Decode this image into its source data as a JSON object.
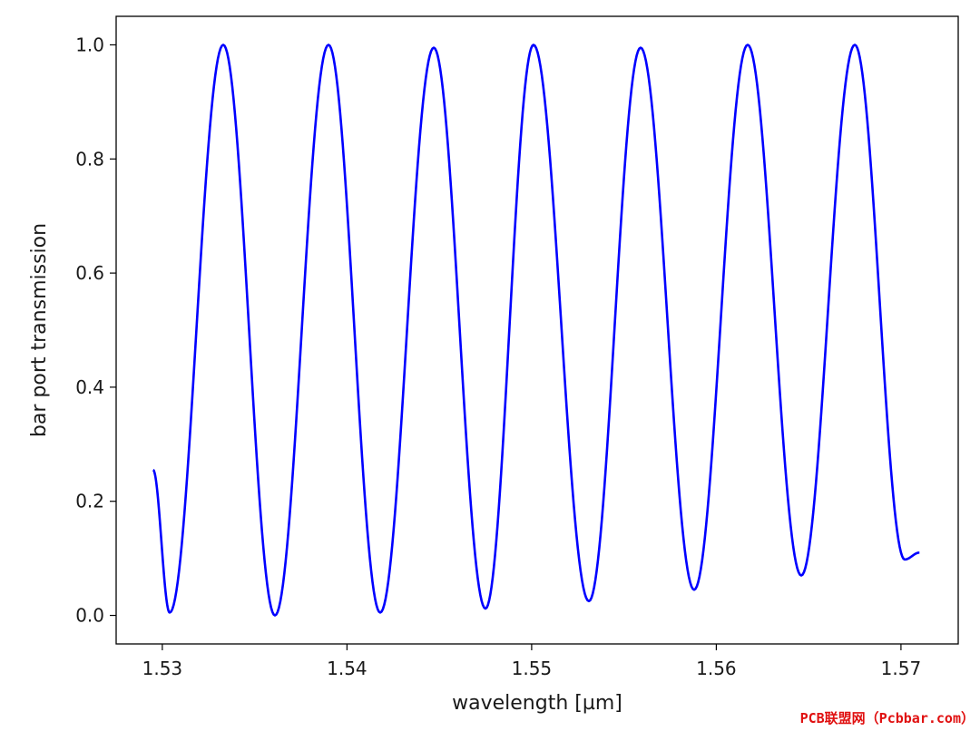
{
  "chart_data": {
    "type": "line",
    "title": "",
    "xlabel": "wavelength [µm]",
    "ylabel": "bar port transmission",
    "xlim": [
      1.5275,
      1.5731
    ],
    "ylim": [
      -0.05,
      1.05
    ],
    "xticks": [
      1.53,
      1.54,
      1.55,
      1.56,
      1.57
    ],
    "xtick_labels": [
      "1.53",
      "1.54",
      "1.55",
      "1.56",
      "1.57"
    ],
    "yticks": [
      0.0,
      0.2,
      0.4,
      0.6,
      0.8,
      1.0
    ],
    "ytick_labels": [
      "0.0",
      "0.2",
      "0.4",
      "0.6",
      "0.8",
      "1.0"
    ],
    "grid": false,
    "series": [
      {
        "color": "#0000ff",
        "x_range": [
          1.5295,
          1.571
        ],
        "peaks": [
          {
            "x": 1.5333,
            "y": 1.0
          },
          {
            "x": 1.539,
            "y": 1.0
          },
          {
            "x": 1.5447,
            "y": 0.995
          },
          {
            "x": 1.5501,
            "y": 1.0
          },
          {
            "x": 1.5559,
            "y": 0.995
          },
          {
            "x": 1.5617,
            "y": 1.0
          },
          {
            "x": 1.5675,
            "y": 1.0
          }
        ],
        "troughs": [
          {
            "x": 1.5304,
            "y": 0.005
          },
          {
            "x": 1.5361,
            "y": 0.0
          },
          {
            "x": 1.5418,
            "y": 0.005
          },
          {
            "x": 1.5475,
            "y": 0.012
          },
          {
            "x": 1.5531,
            "y": 0.025
          },
          {
            "x": 1.5588,
            "y": 0.045
          },
          {
            "x": 1.5646,
            "y": 0.07
          },
          {
            "x": 1.5702,
            "y": 0.098
          }
        ],
        "start": {
          "x": 1.5295,
          "y": 0.255
        },
        "end": {
          "x": 1.571,
          "y": 0.11
        }
      }
    ]
  },
  "watermark": "PCB联盟网（Pcbbar.com）"
}
